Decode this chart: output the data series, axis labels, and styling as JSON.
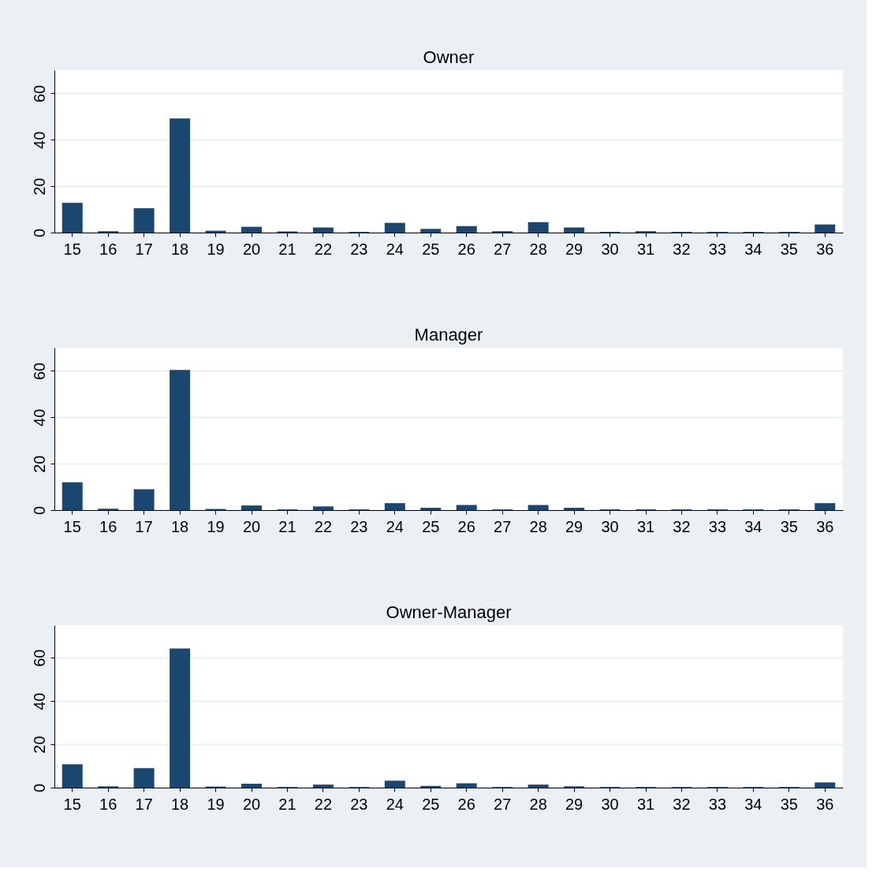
{
  "chart_data": [
    {
      "type": "bar",
      "title": "Owner",
      "categories": [
        "15",
        "16",
        "17",
        "18",
        "19",
        "20",
        "21",
        "22",
        "23",
        "24",
        "25",
        "26",
        "27",
        "28",
        "29",
        "30",
        "31",
        "32",
        "33",
        "34",
        "35",
        "36"
      ],
      "color": "#1a476f",
      "values": [
        12.8,
        0.6,
        10.5,
        49.2,
        0.8,
        2.5,
        0.5,
        2.2,
        0.3,
        4.2,
        1.6,
        2.8,
        0.6,
        4.5,
        2.2,
        0.3,
        0.6,
        0.3,
        0.3,
        0.3,
        0.3,
        3.5
      ],
      "ylim": [
        0,
        70
      ],
      "yticks": [
        0,
        20,
        40,
        60
      ],
      "grid": "y"
    },
    {
      "type": "bar",
      "title": "Manager",
      "categories": [
        "15",
        "16",
        "17",
        "18",
        "19",
        "20",
        "21",
        "22",
        "23",
        "24",
        "25",
        "26",
        "27",
        "28",
        "29",
        "30",
        "31",
        "32",
        "33",
        "34",
        "35",
        "36"
      ],
      "color": "#1a476f",
      "values": [
        12,
        0.6,
        9,
        60.4,
        0.5,
        2,
        0.3,
        1.6,
        0.3,
        3,
        1,
        2.2,
        0.3,
        2.2,
        1,
        0.3,
        0.3,
        0.3,
        0.3,
        0.3,
        0.3,
        3
      ],
      "ylim": [
        0,
        70
      ],
      "yticks": [
        0,
        20,
        40,
        60
      ],
      "grid": "y"
    },
    {
      "type": "bar",
      "title": "Owner-Manager",
      "categories": [
        "15",
        "16",
        "17",
        "18",
        "19",
        "20",
        "21",
        "22",
        "23",
        "24",
        "25",
        "26",
        "27",
        "28",
        "29",
        "30",
        "31",
        "32",
        "33",
        "34",
        "35",
        "36"
      ],
      "color": "#1a476f",
      "values": [
        10.8,
        0.6,
        9,
        64.3,
        0.5,
        1.8,
        0.3,
        1.4,
        0.3,
        3.2,
        0.8,
        2,
        0.3,
        1.4,
        0.6,
        0.3,
        0.3,
        0.3,
        0.3,
        0.3,
        0.3,
        2.4
      ],
      "ylim": [
        0,
        75
      ],
      "yticks": [
        0,
        20,
        40,
        60
      ],
      "grid": "y"
    }
  ]
}
